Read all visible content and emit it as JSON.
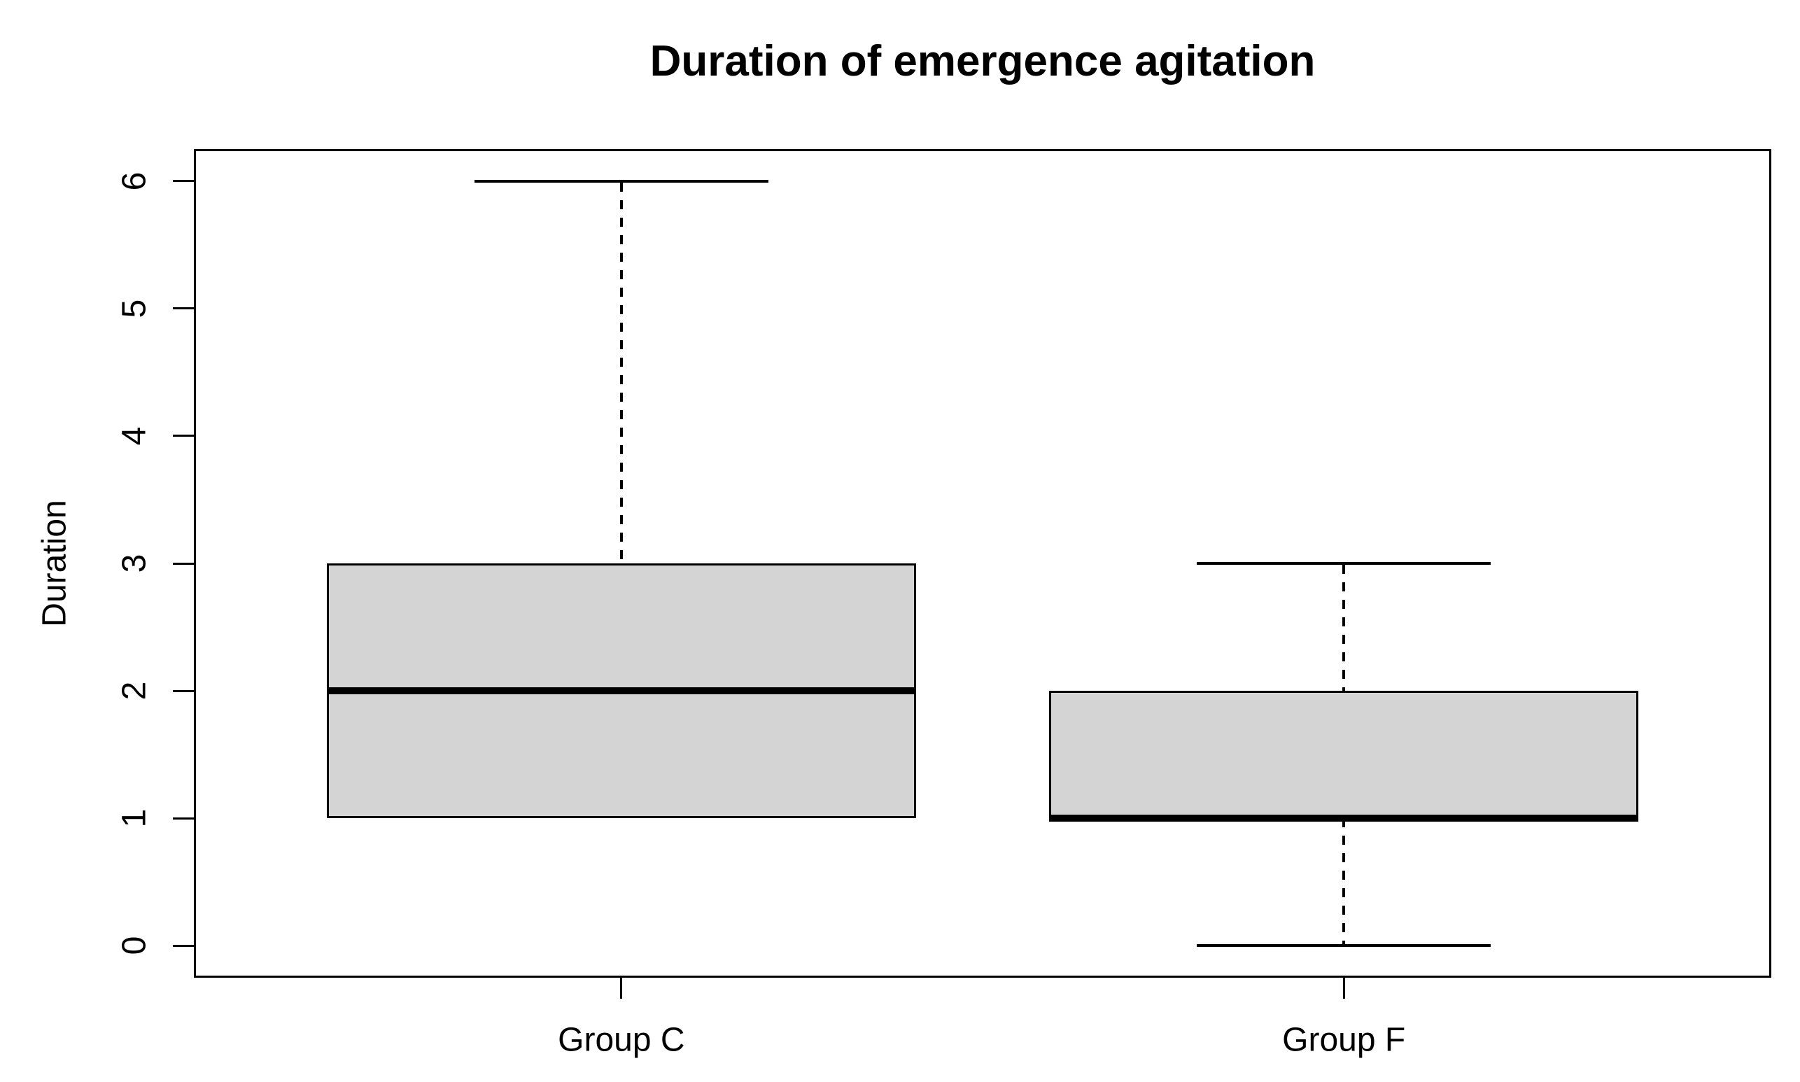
{
  "chart_data": {
    "type": "boxplot",
    "title": "Duration of emergence agitation",
    "ylabel": "Duration",
    "xlabel": "",
    "categories": [
      "Group C",
      "Group F"
    ],
    "series": [
      {
        "name": "Group C",
        "whisker_low": 1,
        "q1": 1,
        "median": 2,
        "q3": 3,
        "whisker_high": 6,
        "outliers": []
      },
      {
        "name": "Group F",
        "whisker_low": 0,
        "q1": 1,
        "median": 1,
        "q3": 2,
        "whisker_high": 3,
        "outliers": []
      }
    ],
    "yticks": [
      0,
      1,
      2,
      3,
      4,
      5,
      6
    ],
    "ylim": [
      -0.25,
      6.25
    ],
    "grid": "off",
    "legend": "none",
    "colors": {
      "box_fill": "#d4d4d4",
      "line": "#000000",
      "background": "#ffffff"
    }
  }
}
